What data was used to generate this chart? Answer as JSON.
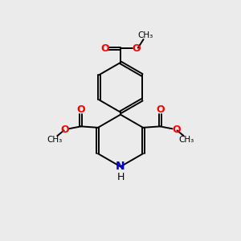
{
  "bg_color": "#ebebeb",
  "bond_color": "#000000",
  "o_color": "#ff0000",
  "n_color": "#0000cc",
  "lw": 1.4,
  "dbo": 0.035,
  "xlim": [
    0,
    10
  ],
  "ylim": [
    0,
    10
  ]
}
